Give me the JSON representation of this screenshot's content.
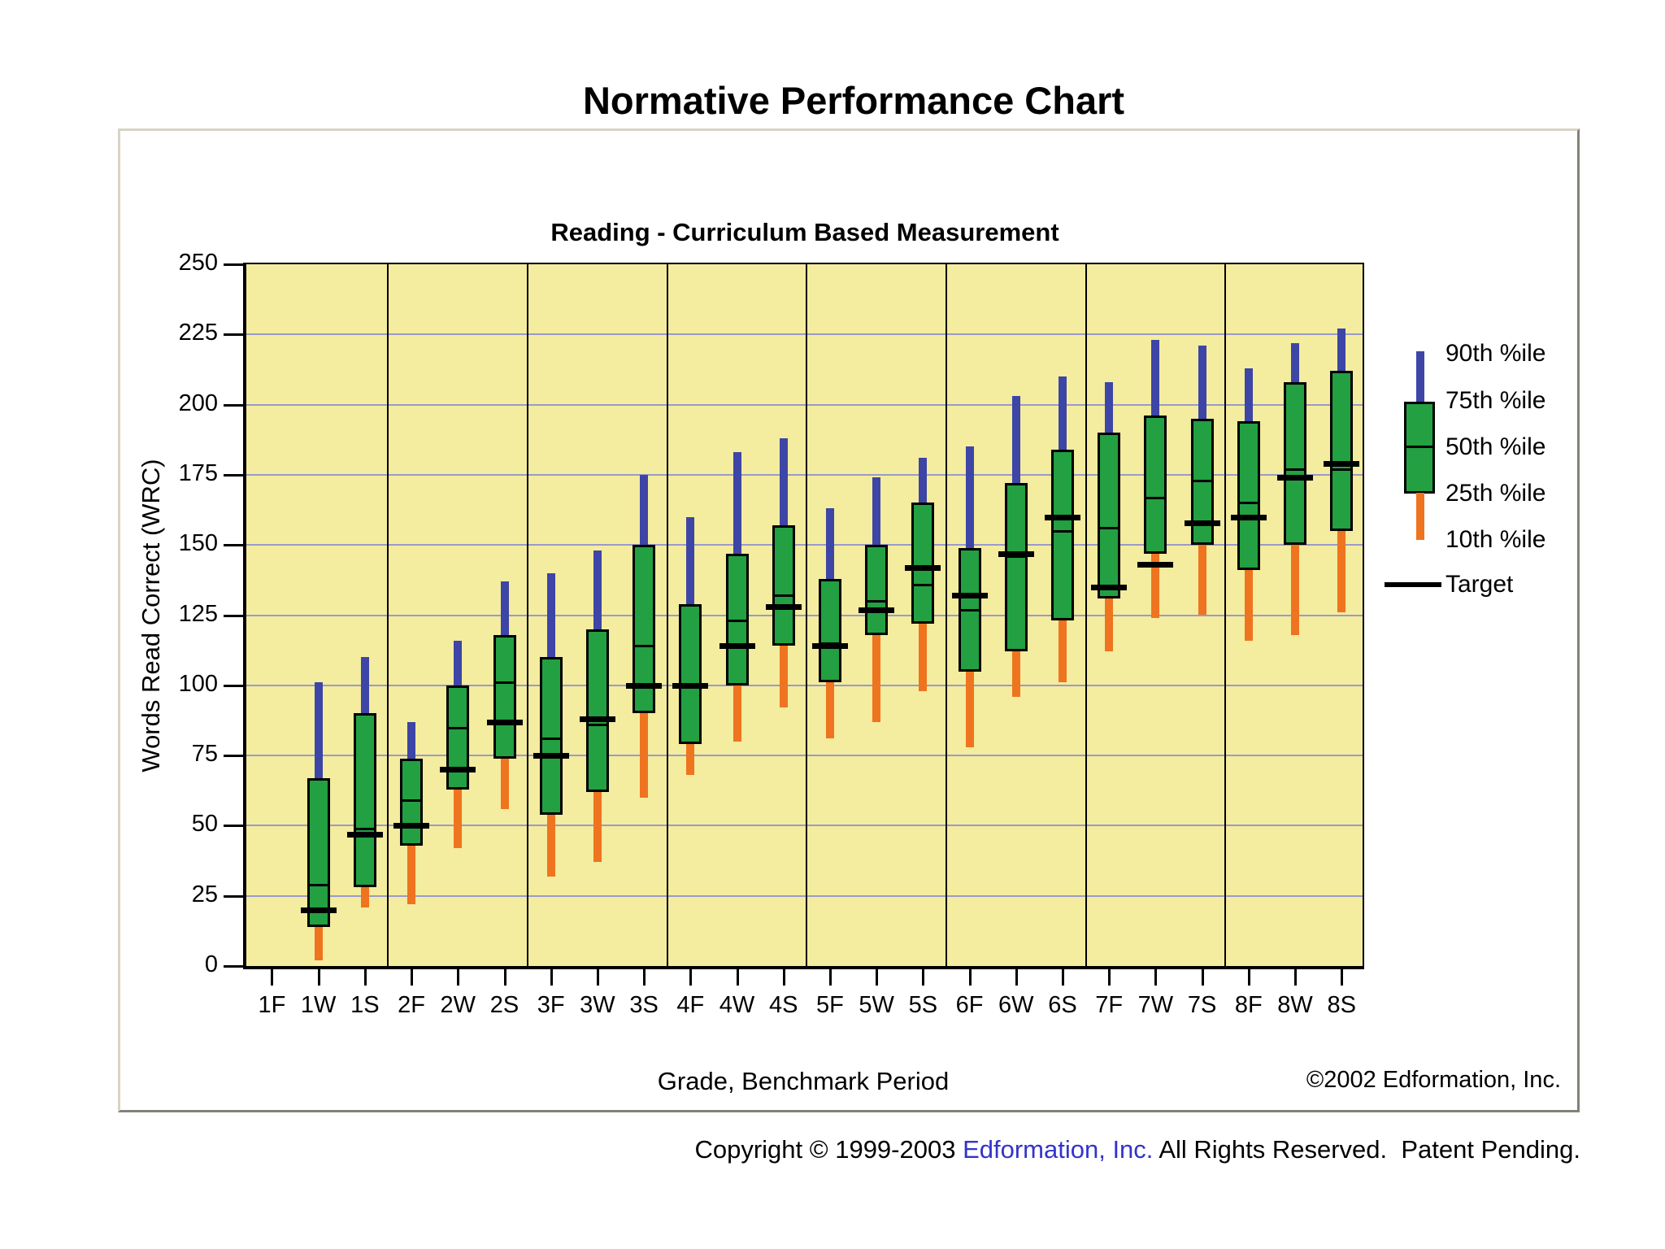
{
  "title": "Normative Performance Chart",
  "chart_data": {
    "type": "boxplot",
    "subtitle": "Reading - Curriculum Based Measurement",
    "xlabel": "Grade, Benchmark Period",
    "ylabel": "Words Read Correct (WRC)",
    "annotation": "©2002 Edformation, Inc.",
    "ylim": [
      0,
      250
    ],
    "ytick_step": 25,
    "grid": true,
    "legend_position": "right",
    "legend": [
      "90th %ile",
      "75th %ile",
      "50th %ile",
      "25th %ile",
      "10th %ile",
      "Target"
    ],
    "colors": {
      "plot_background": "#f4ec9e",
      "gridline": "#9a9acb",
      "box_fill": "#22a042",
      "upper_whisker": "#3d45a6",
      "lower_whisker": "#ee7420",
      "target_line": "#000000"
    },
    "categories": [
      "1F",
      "1W",
      "1S",
      "2F",
      "2W",
      "2S",
      "3F",
      "3W",
      "3S",
      "4F",
      "4W",
      "4S",
      "5F",
      "5W",
      "5S",
      "6F",
      "6W",
      "6S",
      "7F",
      "7W",
      "7S",
      "8F",
      "8W",
      "8S"
    ],
    "columns": [
      {
        "label": "1F",
        "p90": null,
        "p75": null,
        "p50": null,
        "p25": null,
        "p10": null,
        "target": null
      },
      {
        "label": "1W",
        "p90": 101,
        "p75": 67,
        "p50": 29,
        "p25": 14,
        "p10": 2,
        "target": 20
      },
      {
        "label": "1S",
        "p90": 110,
        "p75": 90,
        "p50": 49,
        "p25": 28,
        "p10": 21,
        "target": 47
      },
      {
        "label": "2F",
        "p90": 87,
        "p75": 74,
        "p50": 59,
        "p25": 43,
        "p10": 22,
        "target": 50
      },
      {
        "label": "2W",
        "p90": 116,
        "p75": 100,
        "p50": 85,
        "p25": 63,
        "p10": 42,
        "target": 70
      },
      {
        "label": "2S",
        "p90": 137,
        "p75": 118,
        "p50": 101,
        "p25": 74,
        "p10": 56,
        "target": 87
      },
      {
        "label": "3F",
        "p90": 140,
        "p75": 110,
        "p50": 81,
        "p25": 54,
        "p10": 32,
        "target": 75
      },
      {
        "label": "3W",
        "p90": 148,
        "p75": 120,
        "p50": 86,
        "p25": 62,
        "p10": 37,
        "target": 88
      },
      {
        "label": "3S",
        "p90": 175,
        "p75": 150,
        "p50": 114,
        "p25": 90,
        "p10": 60,
        "target": 100
      },
      {
        "label": "4F",
        "p90": 160,
        "p75": 129,
        "p50": 100,
        "p25": 79,
        "p10": 68,
        "target": 100
      },
      {
        "label": "4W",
        "p90": 183,
        "p75": 147,
        "p50": 123,
        "p25": 100,
        "p10": 80,
        "target": 114
      },
      {
        "label": "4S",
        "p90": 188,
        "p75": 157,
        "p50": 132,
        "p25": 114,
        "p10": 92,
        "target": 128
      },
      {
        "label": "5F",
        "p90": 163,
        "p75": 138,
        "p50": 115,
        "p25": 101,
        "p10": 81,
        "target": 114
      },
      {
        "label": "5W",
        "p90": 174,
        "p75": 150,
        "p50": 130,
        "p25": 118,
        "p10": 87,
        "target": 127
      },
      {
        "label": "5S",
        "p90": 181,
        "p75": 165,
        "p50": 136,
        "p25": 122,
        "p10": 98,
        "target": 142
      },
      {
        "label": "6F",
        "p90": 185,
        "p75": 149,
        "p50": 127,
        "p25": 105,
        "p10": 78,
        "target": 132
      },
      {
        "label": "6W",
        "p90": 203,
        "p75": 172,
        "p50": 146,
        "p25": 112,
        "p10": 96,
        "target": 147
      },
      {
        "label": "6S",
        "p90": 210,
        "p75": 184,
        "p50": 155,
        "p25": 123,
        "p10": 101,
        "target": 160
      },
      {
        "label": "7F",
        "p90": 208,
        "p75": 190,
        "p50": 156,
        "p25": 131,
        "p10": 112,
        "target": 135
      },
      {
        "label": "7W",
        "p90": 223,
        "p75": 196,
        "p50": 167,
        "p25": 147,
        "p10": 124,
        "target": 143
      },
      {
        "label": "7S",
        "p90": 221,
        "p75": 195,
        "p50": 173,
        "p25": 150,
        "p10": 125,
        "target": 158
      },
      {
        "label": "8F",
        "p90": 213,
        "p75": 194,
        "p50": 165,
        "p25": 141,
        "p10": 116,
        "target": 160
      },
      {
        "label": "8W",
        "p90": 222,
        "p75": 208,
        "p50": 177,
        "p25": 150,
        "p10": 118,
        "target": 174
      },
      {
        "label": "8S",
        "p90": 227,
        "p75": 212,
        "p50": 177,
        "p25": 155,
        "p10": 126,
        "target": 179
      }
    ]
  },
  "footer": {
    "copyright_prefix": "Copyright © 1999-2003 ",
    "link_text": "Edformation, Inc.",
    "copyright_suffix": " All Rights Reserved.  Patent Pending."
  }
}
